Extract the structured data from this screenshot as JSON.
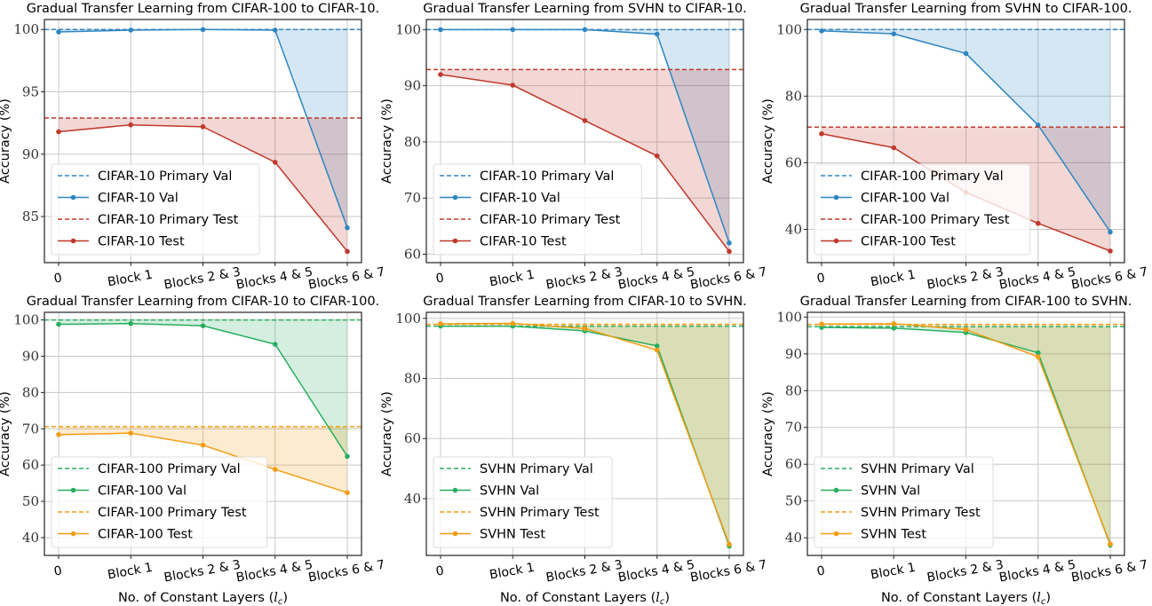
{
  "figure": {
    "layout": "2x3 grid"
  },
  "chart_data": [
    {
      "type": "line",
      "title": "Gradual Transfer Learning from CIFAR-100 to CIFAR-10.",
      "xlabel": "",
      "ylabel": "Accuracy (%)",
      "categories": [
        "0",
        "Block 1",
        "Blocks 2 & 3",
        "Blocks 4 & 5",
        "Blocks 6 & 7"
      ],
      "ylim": [
        81.3,
        100.8
      ],
      "yticks": [
        85,
        90,
        95,
        100
      ],
      "grid": true,
      "legend_position": "lower-left",
      "series": [
        {
          "name": "CIFAR-10 Primary Val",
          "kind": "hline",
          "value": 100,
          "color": "#2e86c1"
        },
        {
          "name": "CIFAR-10 Val",
          "kind": "line",
          "values": [
            99.8,
            99.95,
            100,
            99.95,
            84.1
          ],
          "color": "#2e86c1",
          "fill_to": "CIFAR-10 Primary Val"
        },
        {
          "name": "CIFAR-10 Primary Test",
          "kind": "hline",
          "value": 92.9,
          "color": "#c0392b"
        },
        {
          "name": "CIFAR-10 Test",
          "kind": "line",
          "values": [
            91.8,
            92.35,
            92.2,
            89.35,
            82.2
          ],
          "color": "#c0392b",
          "fill_to": "CIFAR-10 Primary Test"
        }
      ]
    },
    {
      "type": "line",
      "title": "Gradual Transfer Learning from SVHN to CIFAR-10.",
      "xlabel": "",
      "ylabel": "Accuracy (%)",
      "categories": [
        "0",
        "Block 1",
        "Blocks 2 & 3",
        "Blocks 4 & 5",
        "Blocks 6 & 7"
      ],
      "ylim": [
        58.5,
        101.8
      ],
      "yticks": [
        60,
        70,
        80,
        90,
        100
      ],
      "grid": true,
      "legend_position": "lower-left",
      "series": [
        {
          "name": "CIFAR-10 Primary Val",
          "kind": "hline",
          "value": 100,
          "color": "#2e86c1"
        },
        {
          "name": "CIFAR-10 Val",
          "kind": "line",
          "values": [
            100,
            100,
            100,
            99.2,
            62
          ],
          "color": "#2e86c1",
          "fill_to": "CIFAR-10 Primary Val"
        },
        {
          "name": "CIFAR-10 Primary Test",
          "kind": "hline",
          "value": 92.9,
          "color": "#c0392b"
        },
        {
          "name": "CIFAR-10 Test",
          "kind": "line",
          "values": [
            92,
            90.1,
            83.8,
            77.5,
            60.5
          ],
          "color": "#c0392b",
          "fill_to": "CIFAR-10 Primary Test"
        }
      ]
    },
    {
      "type": "line",
      "title": "Gradual Transfer Learning from SVHN to CIFAR-100.",
      "xlabel": "",
      "ylabel": "Accuracy (%)",
      "categories": [
        "0",
        "Block 1",
        "Blocks 2 & 3",
        "Blocks 4 & 5",
        "Blocks 6 & 7"
      ],
      "ylim": [
        30,
        103
      ],
      "yticks": [
        40,
        60,
        80,
        100
      ],
      "grid": true,
      "legend_position": "lower-left",
      "series": [
        {
          "name": "CIFAR-100 Primary Val",
          "kind": "hline",
          "value": 100,
          "color": "#2e86c1"
        },
        {
          "name": "CIFAR-100 Val",
          "kind": "line",
          "values": [
            99.6,
            98.7,
            92.8,
            71.3,
            39.2
          ],
          "color": "#2e86c1",
          "fill_to": "CIFAR-100 Primary Val"
        },
        {
          "name": "CIFAR-100 Primary Test",
          "kind": "hline",
          "value": 70.7,
          "color": "#c0392b"
        },
        {
          "name": "CIFAR-100 Test",
          "kind": "line",
          "values": [
            68.7,
            64.5,
            51.1,
            41.8,
            33.5
          ],
          "color": "#c0392b",
          "fill_to": "CIFAR-100 Primary Test"
        }
      ]
    },
    {
      "type": "line",
      "title": "Gradual Transfer Learning from CIFAR-10 to CIFAR-100.",
      "xlabel": "No. of Constant Layers (l_c)",
      "ylabel": "Accuracy (%)",
      "categories": [
        "0",
        "Block 1",
        "Blocks 2 & 3",
        "Blocks 4 & 5",
        "Blocks 6 & 7"
      ],
      "ylim": [
        35.1,
        102.1
      ],
      "yticks": [
        40,
        50,
        60,
        70,
        80,
        90,
        100
      ],
      "grid": true,
      "legend_position": "lower-left",
      "series": [
        {
          "name": "CIFAR-100 Primary Val",
          "kind": "hline",
          "value": 100,
          "color": "#27ae60"
        },
        {
          "name": "CIFAR-100 Val",
          "kind": "line",
          "values": [
            98.8,
            99,
            98.4,
            93.3,
            62.4
          ],
          "color": "#27ae60",
          "fill_to": "CIFAR-100 Primary Val"
        },
        {
          "name": "CIFAR-100 Primary Test",
          "kind": "hline",
          "value": 70.6,
          "color": "#f39c12"
        },
        {
          "name": "CIFAR-100 Test",
          "kind": "line",
          "values": [
            68.4,
            68.8,
            65.5,
            58.8,
            52.4
          ],
          "color": "#f39c12",
          "fill_to": "CIFAR-100 Primary Test"
        }
      ]
    },
    {
      "type": "line",
      "title": "Gradual Transfer Learning from CIFAR-10 to SVHN.",
      "xlabel": "No. of Constant Layers (l_c)",
      "ylabel": "Accuracy (%)",
      "categories": [
        "0",
        "Block 1",
        "Blocks 2 & 3",
        "Blocks 4 & 5",
        "Blocks 6 & 7"
      ],
      "ylim": [
        21.1,
        102
      ],
      "yticks": [
        40,
        60,
        80,
        100
      ],
      "grid": true,
      "legend_position": "lower-left",
      "series": [
        {
          "name": "SVHN Primary Val",
          "kind": "hline",
          "value": 97.4,
          "color": "#27ae60"
        },
        {
          "name": "SVHN Val",
          "kind": "line",
          "values": [
            97.4,
            97.4,
            95.8,
            90.8,
            24.2
          ],
          "color": "#27ae60",
          "fill_to": "SVHN Primary Val"
        },
        {
          "name": "SVHN Primary Test",
          "kind": "hline",
          "value": 98.0,
          "color": "#f39c12"
        },
        {
          "name": "SVHN Test",
          "kind": "line",
          "values": [
            98.2,
            98.3,
            96.6,
            89.4,
            24.8
          ],
          "color": "#f39c12",
          "fill_to": "SVHN Primary Test"
        }
      ]
    },
    {
      "type": "line",
      "title": "Gradual Transfer Learning from CIFAR-100 to SVHN.",
      "xlabel": "No. of Constant Layers (l_c)",
      "ylabel": "Accuracy (%)",
      "categories": [
        "0",
        "Block 1",
        "Blocks 2 & 3",
        "Blocks 4 & 5",
        "Blocks 6 & 7"
      ],
      "ylim": [
        35.2,
        101.3
      ],
      "yticks": [
        40,
        50,
        60,
        70,
        80,
        90,
        100
      ],
      "grid": true,
      "legend_position": "lower-left",
      "series": [
        {
          "name": "SVHN Primary Val",
          "kind": "hline",
          "value": 97.4,
          "color": "#27ae60"
        },
        {
          "name": "SVHN Val",
          "kind": "line",
          "values": [
            97.2,
            97.0,
            95.8,
            90.3,
            38.0
          ],
          "color": "#27ae60",
          "fill_to": "SVHN Primary Val"
        },
        {
          "name": "SVHN Primary Test",
          "kind": "hline",
          "value": 98.0,
          "color": "#f39c12"
        },
        {
          "name": "SVHN Test",
          "kind": "line",
          "values": [
            98.1,
            98.2,
            96.6,
            89.2,
            38.3
          ],
          "color": "#f39c12",
          "fill_to": "SVHN Primary Test"
        }
      ]
    }
  ]
}
